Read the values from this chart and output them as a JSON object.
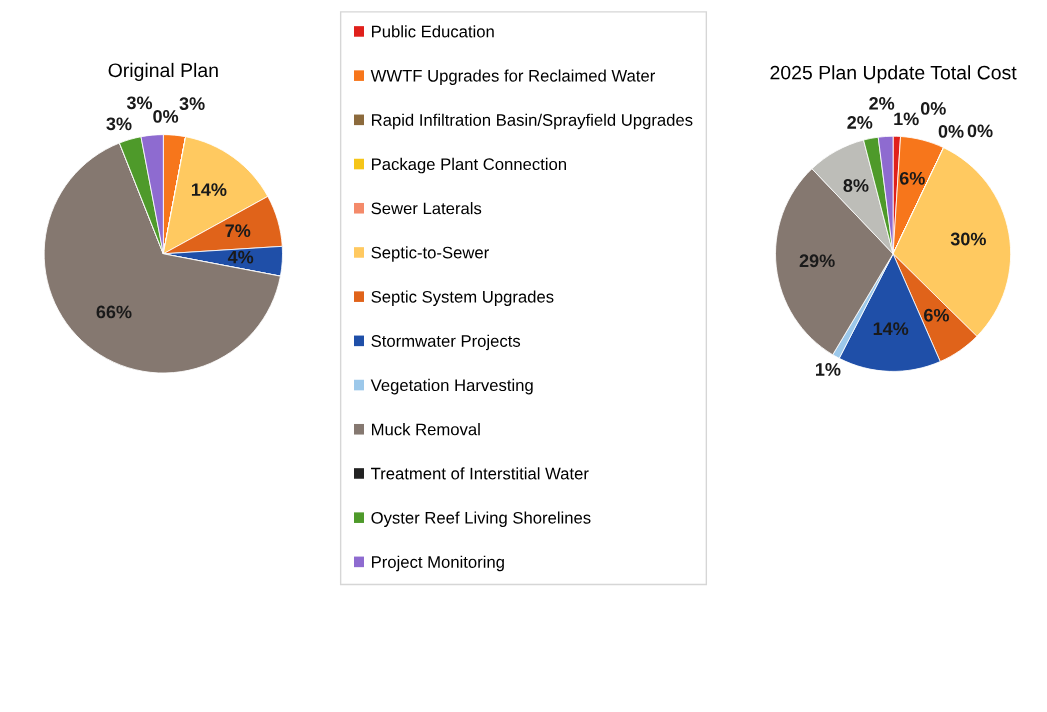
{
  "chart_data": [
    {
      "type": "pie",
      "title": "Original Plan",
      "legend": "right",
      "categories": [
        "Public Education",
        "WWTF Upgrades for Reclaimed Water",
        "Rapid Infiltration Basin/Sprayfield Upgrades",
        "Package Plant Connection",
        "Sewer Laterals",
        "Septic-to-Sewer",
        "Septic System Upgrades",
        "Stormwater Projects",
        "Vegetation Harvesting",
        "Muck Removal",
        "Treatment of Interstitial Water",
        "Oyster Reef Living Shorelines",
        "Project Monitoring"
      ],
      "values": [
        0,
        3,
        0,
        0,
        0,
        14,
        7,
        4,
        0,
        66,
        0,
        3,
        3
      ],
      "value_labels": [
        "0%",
        "3%",
        null,
        null,
        null,
        "14%",
        "7%",
        "4%",
        null,
        "66%",
        null,
        "3%",
        "3%"
      ],
      "colors": [
        "#e0201b",
        "#f7761b",
        "#8c6a3c",
        "#f5c518",
        "#f48a6a",
        "#ffc960",
        "#e0631a",
        "#1f4fa8",
        "#9cc8ea",
        "#857870",
        "#222222",
        "#4e9a2a",
        "#8e6bd0"
      ]
    },
    {
      "type": "pie",
      "title": "2025 Plan Update Total Cost",
      "categories": [
        null,
        null,
        null,
        null,
        null,
        null,
        null,
        null,
        null,
        null,
        null,
        null,
        null
      ],
      "values": [
        1,
        6,
        0,
        0,
        0,
        30,
        6,
        14,
        1,
        29,
        8,
        2,
        2
      ],
      "value_labels": [
        "1%",
        "6%",
        "0%",
        "0%",
        "0%",
        "30%",
        "6%",
        "14%",
        "1%",
        "29%",
        "8%",
        "2%",
        "2%"
      ],
      "colors": [
        "#e0201b",
        "#f7761b",
        "#8c6a3c",
        "#f5c518",
        "#f48a6a",
        "#ffc960",
        "#e0631a",
        "#1f4fa8",
        "#9cc8ea",
        "#857870",
        "#bdbdb8",
        "#4e9a2a",
        "#8e6bd0"
      ]
    }
  ]
}
